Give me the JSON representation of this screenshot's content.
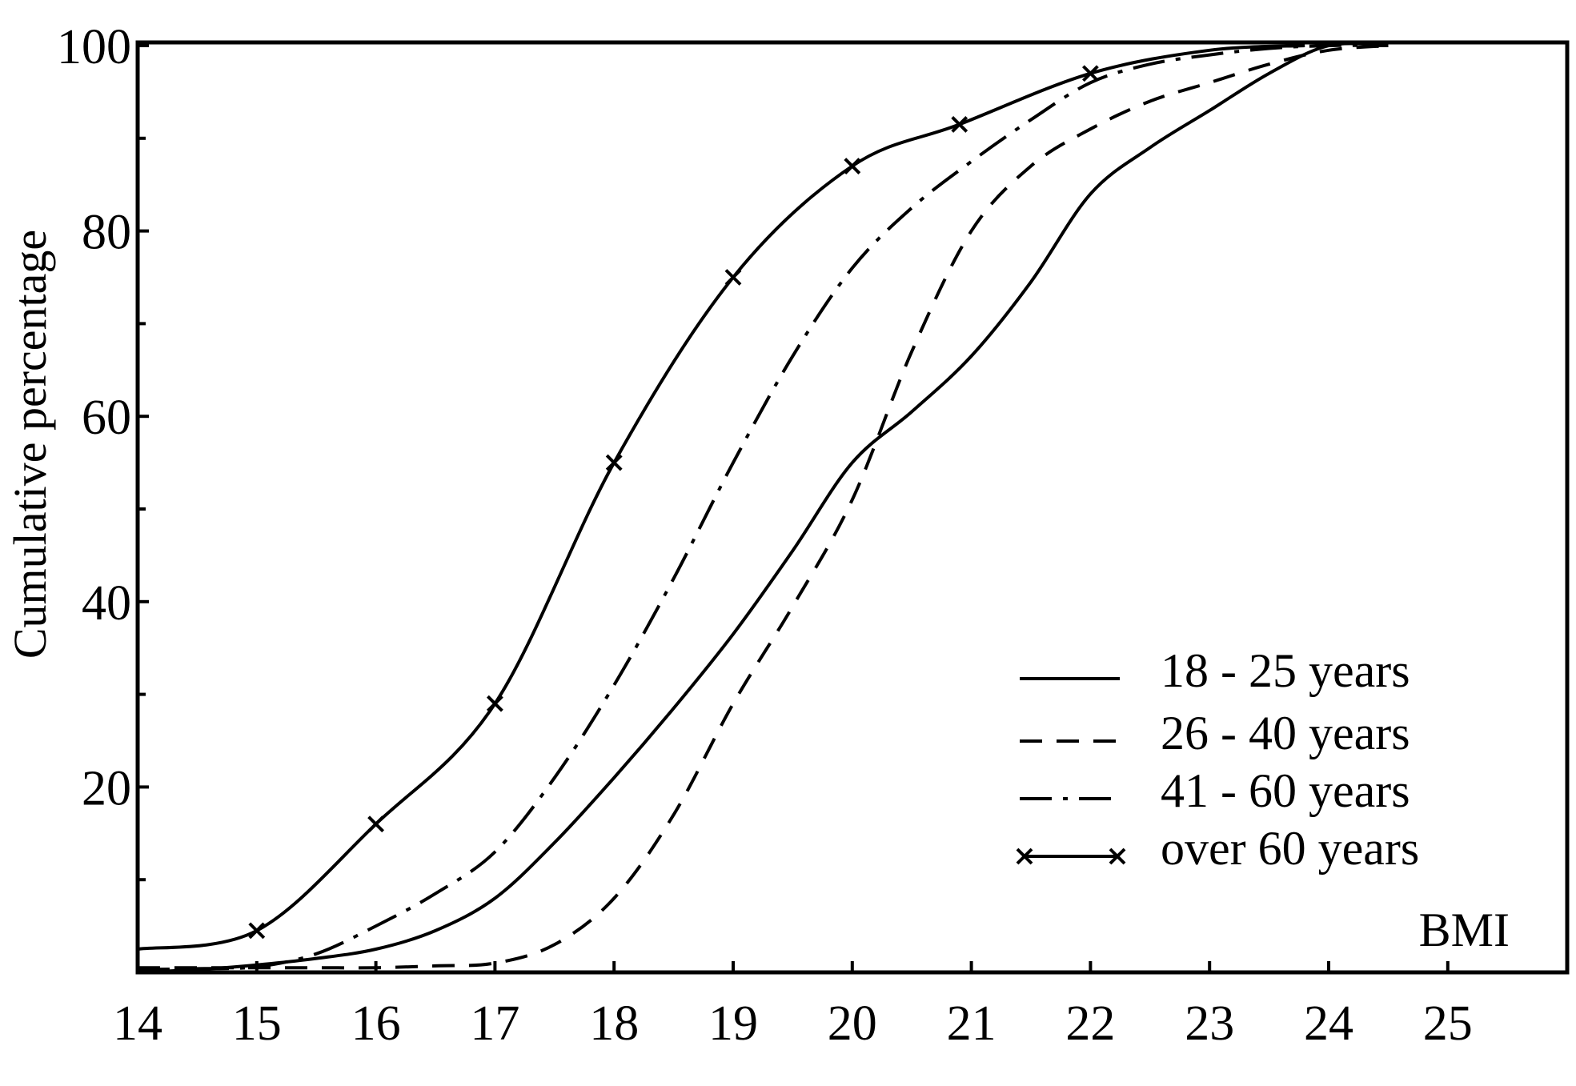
{
  "chart_data": {
    "type": "line",
    "title": "",
    "xlabel": "BMI",
    "ylabel": "Cumulative percentage",
    "xlim": [
      14,
      26
    ],
    "ylim": [
      0,
      100
    ],
    "xticks": [
      "14",
      "15",
      "16",
      "17",
      "18",
      "19",
      "20",
      "21",
      "22",
      "23",
      "24",
      "25"
    ],
    "yticks": [
      "20",
      "40",
      "60",
      "80",
      "100"
    ],
    "grid": false,
    "legend_position": "bottom-right",
    "series": [
      {
        "name": "18 - 25 years",
        "style": "solid",
        "x": [
          14,
          14.5,
          15,
          15.5,
          16,
          16.5,
          17,
          17.5,
          18,
          18.5,
          19,
          19.5,
          20,
          20.5,
          21,
          21.5,
          22,
          22.5,
          23,
          23.5,
          24,
          24.5
        ],
        "y": [
          0,
          0.3,
          0.8,
          1.5,
          2.5,
          4.5,
          8,
          14,
          21,
          28.5,
          36.5,
          45.5,
          55,
          60.5,
          66.5,
          74.5,
          84,
          89,
          93,
          97,
          100,
          100
        ]
      },
      {
        "name": "26 - 40 years",
        "style": "dashed",
        "x": [
          14,
          14.5,
          15,
          15.5,
          16,
          16.5,
          17,
          17.5,
          18,
          18.5,
          19,
          19.5,
          20,
          20.5,
          21,
          21.5,
          22,
          22.5,
          23,
          23.5,
          24,
          24.5
        ],
        "y": [
          0.5,
          0.5,
          0.5,
          0.5,
          0.5,
          0.7,
          1,
          3,
          8,
          17,
          29,
          39.5,
          51,
          67,
          80,
          87,
          91,
          94,
          96,
          98,
          99.5,
          100
        ]
      },
      {
        "name": "41 - 60 years",
        "style": "dash-dot",
        "x": [
          14,
          14.5,
          15,
          15.5,
          16,
          16.5,
          17,
          17.5,
          18,
          18.5,
          19,
          19.5,
          20,
          20.5,
          21,
          21.5,
          22,
          22.5,
          23,
          23.5,
          24,
          24.5
        ],
        "y": [
          0.3,
          0.4,
          0.6,
          2,
          5,
          8.5,
          13,
          21,
          31,
          42.5,
          55,
          66.5,
          76,
          82.5,
          87.5,
          92,
          96,
          98,
          99,
          99.7,
          100,
          100
        ]
      },
      {
        "name": "over 60 years",
        "style": "solid-x",
        "x": [
          14,
          15,
          16,
          17,
          18,
          19,
          20,
          20.9,
          22,
          23,
          23.8
        ],
        "y": [
          2.5,
          4.5,
          16,
          29,
          55,
          75,
          87,
          91.5,
          97,
          99.5,
          100
        ],
        "markers_x": [
          15,
          16,
          17,
          18,
          19,
          20,
          20.9,
          22
        ]
      }
    ]
  },
  "legend_line_color": "#000000"
}
